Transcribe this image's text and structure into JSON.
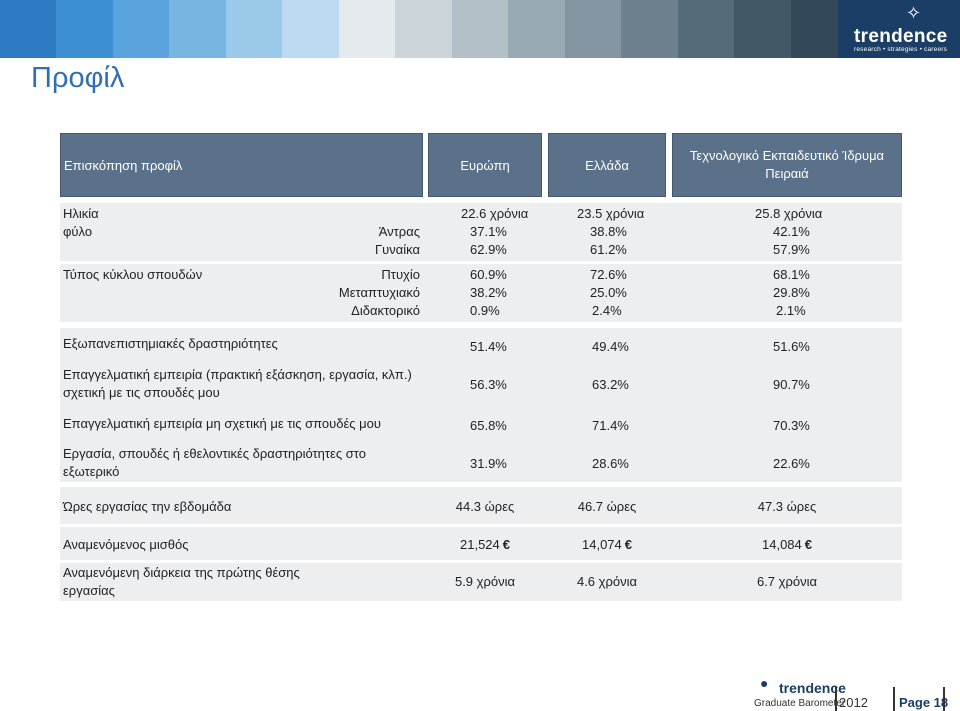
{
  "header": {
    "colors": [
      "#2f7bc3",
      "#3c8fd3",
      "#5aa3dc",
      "#78b6e2",
      "#9bc9ea",
      "#bcdaf1",
      "#e4eaee",
      "#ccd5da",
      "#b3c0c8",
      "#9aaab4",
      "#8494a0",
      "#6d808d",
      "#566b79",
      "#435866",
      "#33495a",
      "#243c4f",
      "#1a3447"
    ],
    "logo": {
      "word": "trendence",
      "tagline": "research • strategies • careers"
    }
  },
  "page_title": "Προφίλ",
  "table": {
    "headers": [
      "Επισκόπηση προφίλ",
      "Ευρώπη",
      "Ελλάδα",
      "Τεχνολογικό Εκπαιδευτικό Ίδρυμα Πειραιά"
    ],
    "age": {
      "label": "Ηλικία",
      "values": [
        "22.6 χρόνια",
        "23.5 χρόνια",
        "25.8 χρόνια"
      ]
    },
    "gender": {
      "label": "φύλο",
      "rows": [
        {
          "sub": "Άντρας",
          "values": [
            "37.1%",
            "38.8%",
            "42.1%"
          ]
        },
        {
          "sub": "Γυναίκα",
          "values": [
            "62.9%",
            "61.2%",
            "57.9%"
          ]
        }
      ]
    },
    "degree": {
      "label": "Τύπος κύκλου σπουδών",
      "rows": [
        {
          "sub": "Πτυχίο",
          "values": [
            "60.9%",
            "72.6%",
            "68.1%"
          ]
        },
        {
          "sub": "Μεταπτυχιακό",
          "values": [
            "38.2%",
            "25.0%",
            "29.8%"
          ]
        },
        {
          "sub": "Διδακτορικό",
          "values": [
            "0.9%",
            "2.4%",
            "2.1%"
          ]
        }
      ]
    },
    "activities": [
      {
        "label": "Εξωπανεπιστημιακές δραστηριότητες",
        "values": [
          "51.4%",
          "49.4%",
          "51.6%"
        ]
      },
      {
        "label": "Επαγγελματική εμπειρία (πρακτική εξάσκηση, εργασία, κλπ.) σχετική με τις σπουδές μου",
        "values": [
          "56.3%",
          "63.2%",
          "90.7%"
        ]
      },
      {
        "label": "Επαγγελματική εμπειρία μη σχετική με τις σπουδές μου",
        "values": [
          "65.8%",
          "71.4%",
          "70.3%"
        ]
      },
      {
        "label": "Εργασία, σπουδές ή εθελοντικές δραστηριότητες στο εξωτερικό",
        "values": [
          "31.9%",
          "28.6%",
          "22.6%"
        ]
      }
    ],
    "hours": {
      "label": "Ώρες εργασίας την εβδομάδα",
      "values": [
        "44.3 ώρες",
        "46.7 ώρες",
        "47.3 ώρες"
      ]
    },
    "salary": {
      "label": "Αναμενόμενος μισθός",
      "values": [
        "21,524",
        "14,074",
        "14,084"
      ],
      "currency": "€"
    },
    "duration": {
      "label": "Αναμενόμενη διάρκεια της πρώτης θέσης εργασίας",
      "values": [
        "5.9 χρόνια",
        "4.6 χρόνια",
        "6.7 χρόνια"
      ]
    }
  },
  "footer": {
    "brand": "trendence",
    "subtitle": "Graduate Barometer",
    "year": "2012",
    "page": "Page 18"
  }
}
